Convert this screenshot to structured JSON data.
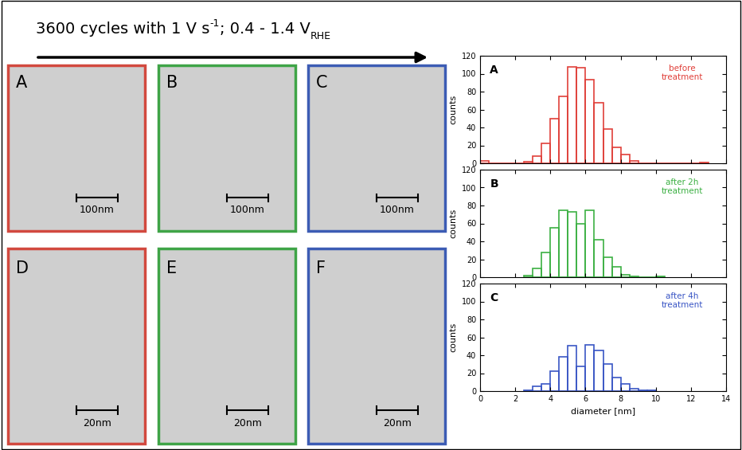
{
  "header": {
    "text": "3600 cycles with 1 V s",
    "superscript": "-1",
    "text_after": "; 0.4 - 1.4 V",
    "subscript": "RHE"
  },
  "images": [
    {
      "label": "A",
      "scale_bar": "100nm",
      "color": "#d2493f"
    },
    {
      "label": "B",
      "scale_bar": "100nm",
      "color": "#3fa447"
    },
    {
      "label": "C",
      "scale_bar": "100nm",
      "color": "#3c5cb4"
    },
    {
      "label": "D",
      "scale_bar": "20nm",
      "color": "#d2493f"
    },
    {
      "label": "E",
      "scale_bar": "20nm",
      "color": "#3fa447"
    },
    {
      "label": "F",
      "scale_bar": "20nm",
      "color": "#3c5cb4"
    }
  ],
  "chart_data": [
    {
      "type": "histogram",
      "title": "A",
      "annotation": "before\ntreatment",
      "color": "#e0403a",
      "bins": [
        0,
        0.5,
        1,
        1.5,
        2,
        2.5,
        3,
        3.5,
        4,
        4.5,
        5,
        5.5,
        6,
        6.5,
        7,
        7.5,
        8,
        8.5,
        9,
        9.5,
        10,
        10.5,
        11,
        11.5,
        12,
        12.5,
        13
      ],
      "counts": [
        3,
        0,
        0,
        0,
        0,
        2,
        8,
        22,
        50,
        75,
        108,
        107,
        93,
        68,
        38,
        18,
        10,
        3,
        0,
        0,
        0,
        0,
        0,
        0,
        0,
        1
      ],
      "y_label": "counts",
      "xlim": [
        0,
        14
      ],
      "xticks": [
        0,
        2,
        4,
        6,
        8,
        10,
        12,
        14
      ],
      "ylim": [
        0,
        120
      ],
      "yticks": [
        0,
        20,
        40,
        60,
        80,
        100,
        120
      ],
      "tick_labels": "y"
    },
    {
      "type": "histogram",
      "title": "B",
      "annotation": "after 2h\ntreatment",
      "color": "#3cb043",
      "bins": [
        2.5,
        3,
        3.5,
        4,
        4.5,
        5,
        5.5,
        6,
        6.5,
        7,
        7.5,
        8,
        8.5,
        9,
        9.5,
        10,
        10.5
      ],
      "counts": [
        2,
        10,
        28,
        55,
        75,
        73,
        60,
        75,
        42,
        22,
        12,
        3,
        1,
        0,
        0,
        1
      ],
      "y_label": "counts",
      "xlim": [
        0,
        14
      ],
      "xticks": [
        0,
        2,
        4,
        6,
        8,
        10,
        12,
        14
      ],
      "ylim": [
        0,
        120
      ],
      "yticks": [
        0,
        20,
        40,
        60,
        80,
        100,
        120
      ],
      "tick_labels": "y"
    },
    {
      "type": "histogram",
      "title": "C",
      "annotation": "after 4h\ntreatment",
      "color": "#3a56c5",
      "bins": [
        2.5,
        3,
        3.5,
        4,
        4.5,
        5,
        5.5,
        6,
        6.5,
        7,
        7.5,
        8,
        8.5,
        9,
        9.5,
        10
      ],
      "counts": [
        1,
        5,
        8,
        22,
        38,
        51,
        28,
        52,
        45,
        30,
        15,
        8,
        3,
        1,
        1
      ],
      "x_label": "diameter [nm]",
      "y_label": "counts",
      "xlim": [
        0,
        14
      ],
      "xticks": [
        0,
        2,
        4,
        6,
        8,
        10,
        12,
        14
      ],
      "ylim": [
        0,
        120
      ],
      "yticks": [
        0,
        20,
        40,
        60,
        80,
        100,
        120
      ]
    }
  ]
}
